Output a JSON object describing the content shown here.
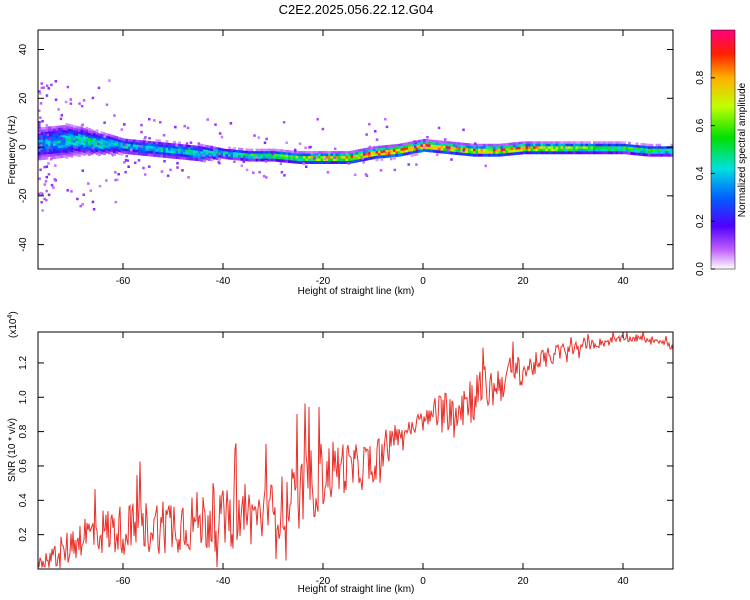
{
  "chart_data": [
    {
      "type": "heatmap",
      "title": "C2E2.2025.056.22.12.G04",
      "xlabel": "Height of straight line (km)",
      "ylabel": "Frequency (Hz)",
      "xlim": [
        -77,
        50
      ],
      "ylim": [
        -50,
        48
      ],
      "xticks": [
        "-60",
        "-40",
        "-20",
        "0",
        "20",
        "40"
      ],
      "yticks": [
        "-40",
        "-20",
        "0",
        "20",
        "40"
      ],
      "colorbar": {
        "label": "Normalized spectral amplitude",
        "range": [
          0,
          1
        ],
        "ticks": [
          "0.0",
          "0.2",
          "0.4",
          "0.6",
          "0.8"
        ]
      },
      "ridge": {
        "x": [
          -77,
          -72,
          -68,
          -65,
          -60,
          -55,
          -50,
          -45,
          -40,
          -35,
          -30,
          -25,
          -20,
          -15,
          -10,
          -5,
          0,
          5,
          10,
          15,
          20,
          25,
          30,
          35,
          40,
          45,
          50
        ],
        "center_hz": [
          2,
          3,
          3,
          2,
          1,
          0,
          -1,
          -2,
          -2,
          -3,
          -3,
          -4,
          -4,
          -4,
          -2,
          -1,
          1,
          0,
          -1,
          -1,
          0,
          0,
          0,
          0,
          0,
          -1,
          -1
        ],
        "halfwidth_hz": [
          6,
          6,
          5,
          4,
          3,
          3,
          3,
          3,
          2,
          2,
          2,
          2,
          2,
          2,
          2,
          2,
          2,
          2,
          2,
          2,
          2,
          2,
          2,
          2,
          2,
          2,
          2
        ],
        "peak_amplitude": [
          0.35,
          0.4,
          0.45,
          0.45,
          0.4,
          0.4,
          0.42,
          0.45,
          0.45,
          0.5,
          0.55,
          0.65,
          0.75,
          0.8,
          0.9,
          0.95,
          0.95,
          0.85,
          0.8,
          0.85,
          0.8,
          0.7,
          0.6,
          0.55,
          0.52,
          0.5,
          0.5
        ]
      }
    },
    {
      "type": "line",
      "xlabel": "Height of straight line (km)",
      "ylabel": "SNR (10 * v/v)",
      "y_multiplier": "(x10",
      "y_multiplier_exp": "4",
      "y_multiplier_close": ")",
      "xlim": [
        -77,
        50
      ],
      "ylim": [
        0,
        1.38
      ],
      "xticks": [
        "-60",
        "-40",
        "-20",
        "0",
        "20",
        "40"
      ],
      "yticks": [
        "0.2",
        "0.4",
        "0.6",
        "0.8",
        "1.0",
        "1.2"
      ],
      "series_color": "#e8302a",
      "series": [
        {
          "x": [
            -77,
            -72,
            -68,
            -64,
            -60,
            -56,
            -52,
            -48,
            -44,
            -40,
            -36,
            -32,
            -29,
            -26,
            -24,
            -22,
            -20,
            -18,
            -16,
            -14,
            -12,
            -10,
            -8,
            -6,
            -4,
            -2,
            0,
            2,
            4,
            6,
            8,
            10,
            12,
            14,
            16,
            18,
            20,
            24,
            28,
            32,
            36,
            40,
            44,
            48,
            50
          ],
          "trend": [
            0.03,
            0.1,
            0.2,
            0.22,
            0.23,
            0.24,
            0.26,
            0.27,
            0.28,
            0.28,
            0.3,
            0.32,
            0.35,
            0.4,
            0.45,
            0.5,
            0.55,
            0.58,
            0.6,
            0.58,
            0.6,
            0.62,
            0.7,
            0.75,
            0.8,
            0.82,
            0.85,
            0.9,
            0.92,
            0.95,
            0.97,
            1.0,
            1.05,
            1.05,
            1.1,
            1.15,
            1.15,
            1.22,
            1.27,
            1.3,
            1.32,
            1.34,
            1.34,
            1.33,
            1.28
          ],
          "noise": [
            0.03,
            0.1,
            0.12,
            0.14,
            0.15,
            0.16,
            0.17,
            0.18,
            0.18,
            0.18,
            0.18,
            0.16,
            0.18,
            0.2,
            0.2,
            0.22,
            0.2,
            0.18,
            0.16,
            0.14,
            0.14,
            0.13,
            0.12,
            0.06,
            0.05,
            0.05,
            0.05,
            0.08,
            0.12,
            0.14,
            0.16,
            0.15,
            0.14,
            0.12,
            0.12,
            0.1,
            0.08,
            0.06,
            0.05,
            0.03,
            0.03,
            0.02,
            0.02,
            0.02,
            0.03
          ]
        }
      ]
    }
  ]
}
